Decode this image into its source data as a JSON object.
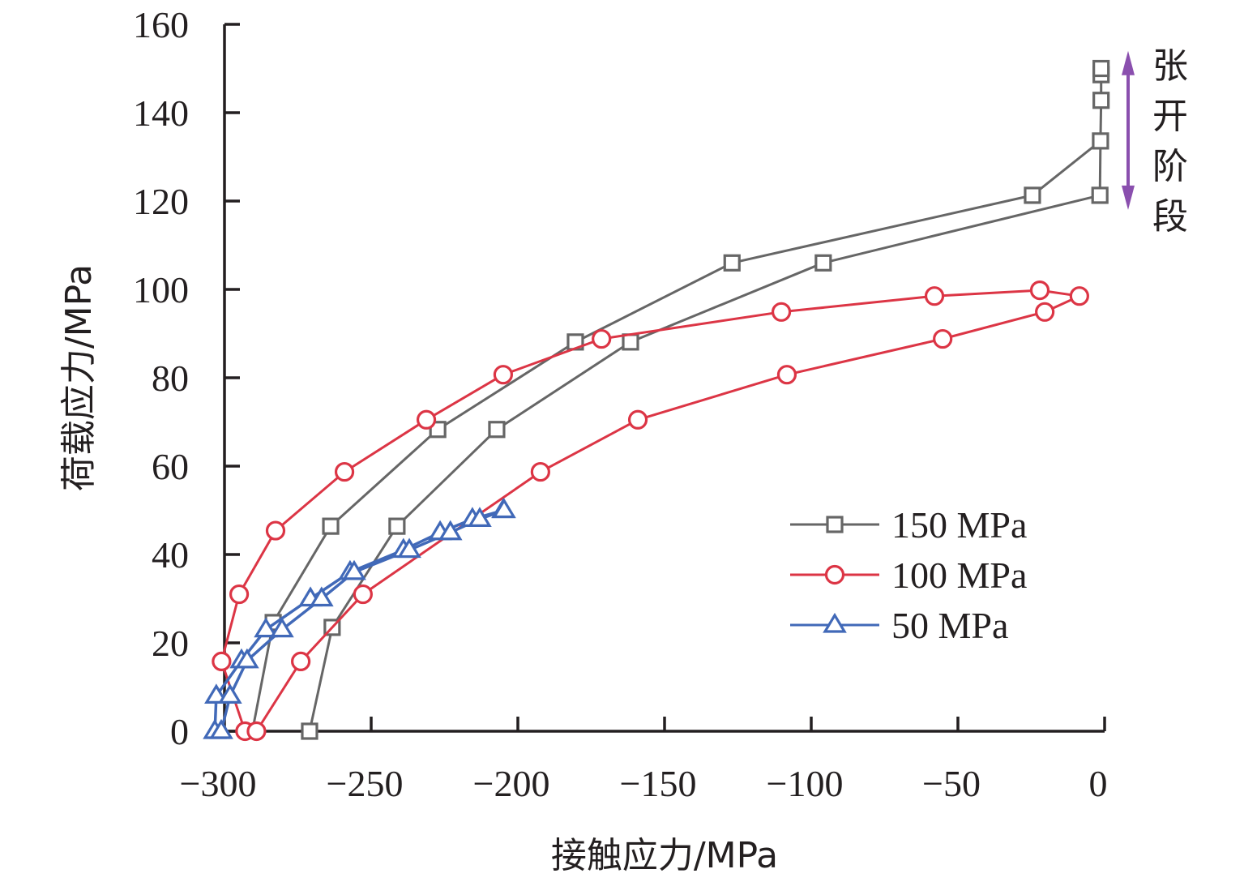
{
  "chart_data": {
    "type": "line",
    "title": "",
    "xlabel": "接触应力/MPa",
    "ylabel": "荷载应力/MPa",
    "xlim": [
      -300,
      0
    ],
    "ylim": [
      0,
      160
    ],
    "xticks": [
      -300,
      -250,
      -200,
      -150,
      -100,
      -50,
      0
    ],
    "yticks": [
      0,
      20,
      40,
      60,
      80,
      100,
      120,
      140,
      160
    ],
    "xtick_labels": [
      "−300",
      "−250",
      "−200",
      "−150",
      "−100",
      "−50",
      "0"
    ],
    "ytick_labels": [
      "0",
      "20",
      "40",
      "60",
      "80",
      "100",
      "120",
      "140",
      "160"
    ],
    "grid": false,
    "legend_position": "center-right",
    "series": [
      {
        "name": "150 MPa",
        "color": "#666666",
        "marker": "square",
        "points": [
          [
            -290.5,
            0
          ],
          [
            -283.4,
            24.6
          ],
          [
            -263.8,
            46.4
          ],
          [
            -227.3,
            68.3
          ],
          [
            -180.4,
            88.1
          ],
          [
            -127.0,
            106.0
          ],
          [
            -24.6,
            121.3
          ],
          [
            -1.4,
            133.6
          ],
          [
            -1.2,
            142.8
          ],
          [
            -1.2,
            148.6
          ],
          [
            -1.2,
            150.0
          ],
          [
            -1.2,
            148.6
          ],
          [
            -1.2,
            142.8
          ],
          [
            -1.4,
            133.6
          ],
          [
            -1.6,
            121.3
          ],
          [
            -95.9,
            106.0
          ],
          [
            -161.6,
            88.1
          ],
          [
            -207.2,
            68.3
          ],
          [
            -241.2,
            46.4
          ],
          [
            -263.3,
            23.5
          ],
          [
            -271.0,
            0
          ]
        ],
        "marker_points": [
          [
            -283.4,
            24.6
          ],
          [
            -263.8,
            46.4
          ],
          [
            -227.3,
            68.3
          ],
          [
            -180.4,
            88.1
          ],
          [
            -127.0,
            106.0
          ],
          [
            -24.6,
            121.3
          ],
          [
            -1.4,
            133.6
          ],
          [
            -1.2,
            142.8
          ],
          [
            -1.2,
            148.6
          ],
          [
            -1.2,
            150.0
          ],
          [
            -1.6,
            121.3
          ],
          [
            -95.9,
            106.0
          ],
          [
            -161.6,
            88.1
          ],
          [
            -207.2,
            68.3
          ],
          [
            -241.2,
            46.4
          ],
          [
            -263.3,
            23.5
          ],
          [
            -271.0,
            0
          ]
        ]
      },
      {
        "name": "100 MPa",
        "color": "#dc3545",
        "marker": "circle",
        "points": [
          [
            -293.0,
            0
          ],
          [
            -301.0,
            15.8
          ],
          [
            -295.0,
            31.0
          ],
          [
            -282.6,
            45.4
          ],
          [
            -259.1,
            58.7
          ],
          [
            -231.2,
            70.5
          ],
          [
            -205.0,
            80.7
          ],
          [
            -171.5,
            88.8
          ],
          [
            -110.2,
            94.9
          ],
          [
            -58.0,
            98.5
          ],
          [
            -22.1,
            99.8
          ],
          [
            -8.6,
            98.5
          ],
          [
            -20.4,
            94.9
          ],
          [
            -55.2,
            88.8
          ],
          [
            -108.3,
            80.7
          ],
          [
            -159.1,
            70.5
          ],
          [
            -192.3,
            58.7
          ],
          [
            -252.8,
            31.0
          ],
          [
            -274.0,
            15.8
          ],
          [
            -289.1,
            0
          ]
        ]
      },
      {
        "name": "50 MPa",
        "color": "#4169b8",
        "marker": "triangle",
        "points": [
          [
            -303.3,
            0
          ],
          [
            -302.8,
            8
          ],
          [
            -294.2,
            16
          ],
          [
            -285.9,
            23
          ],
          [
            -270.7,
            30
          ],
          [
            -257.2,
            36
          ],
          [
            -239.0,
            41
          ],
          [
            -226.5,
            45
          ],
          [
            -215.5,
            48
          ],
          [
            -205.0,
            50
          ],
          [
            -204.7,
            50
          ],
          [
            -213.0,
            48
          ],
          [
            -223.0,
            45
          ],
          [
            -237.0,
            41
          ],
          [
            -255.8,
            36
          ],
          [
            -266.9,
            30
          ],
          [
            -280.4,
            23
          ],
          [
            -292.3,
            16
          ],
          [
            -298.1,
            8
          ],
          [
            -301.1,
            0
          ]
        ]
      }
    ],
    "annotations": [
      {
        "text": "张开阶段",
        "type": "double-arrow",
        "color": "#8a4fae",
        "y_range": [
          118,
          154
        ],
        "x": 8
      }
    ]
  }
}
